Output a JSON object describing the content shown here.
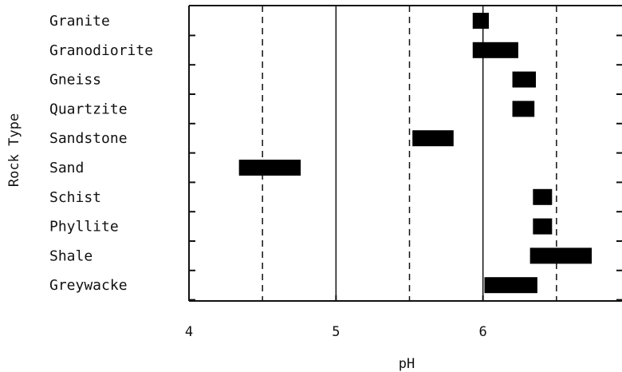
{
  "chart_data": {
    "type": "bar",
    "orientation": "horizontal-range",
    "xlabel": "pH",
    "ylabel": "Rock Type",
    "xlim": [
      4,
      7
    ],
    "xticks": [
      "4",
      "5",
      "6",
      "7"
    ],
    "grid": "vertical reference lines: dashed at 4.5, 5.5, 6.5; solid at 5 and 6",
    "categories": [
      "Granite",
      "Granodiorite",
      "Gneiss",
      "Quartzite",
      "Sandstone",
      "Sand",
      "Schist",
      "Phyllite",
      "Shale",
      "Greywacke"
    ],
    "ranges": [
      [
        5.93,
        6.04
      ],
      [
        5.93,
        6.24
      ],
      [
        6.2,
        6.36
      ],
      [
        6.2,
        6.35
      ],
      [
        5.52,
        5.8
      ],
      [
        4.34,
        4.76
      ],
      [
        6.34,
        6.47
      ],
      [
        6.34,
        6.47
      ],
      [
        6.32,
        6.74
      ],
      [
        6.01,
        6.37
      ]
    ],
    "dashed_lines": [
      4.5,
      5.5,
      6.5
    ],
    "solid_lines": [
      5,
      6
    ]
  }
}
